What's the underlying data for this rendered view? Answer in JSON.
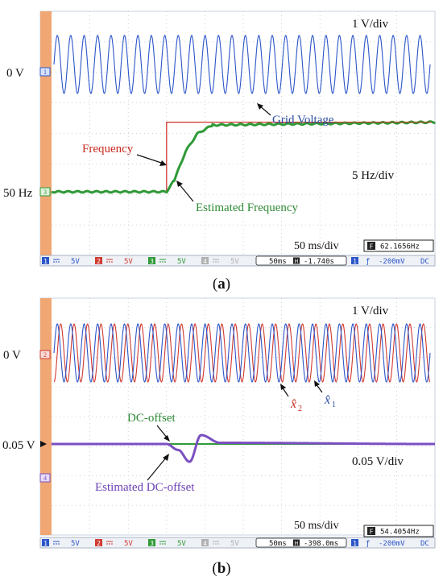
{
  "figure_a": {
    "caption": "(a)",
    "scale_top": "1 V/div",
    "scale_bottom": "5 Hz/div",
    "time_div": "50 ms/div",
    "ch1_ref": "0 V",
    "freq_ref": "50 Hz",
    "annot_frequency": "Frequency",
    "annot_estimated": "Estimated Frequency",
    "annot_grid": "Grid Voltage",
    "freq_readout": "62.1656Hz",
    "statusbar": {
      "ch1": "5V",
      "ch2": "5V",
      "ch3": "5V",
      "ch4": "5V",
      "timebase": "50ms",
      "hpos": "-1.740s",
      "trig": "-200mV",
      "coupling": "DC"
    }
  },
  "figure_b": {
    "caption": "(b)",
    "scale_top": "1 V/div",
    "scale_bottom": "0.05 V/div",
    "time_div": "50 ms/div",
    "ch2_ref": "0 V",
    "dc_ref": "0.05 V",
    "annot_dc": "DC-offset",
    "annot_estimated": "Estimated DC-offset",
    "annot_x2": "x̂",
    "annot_x2_sub": "2",
    "annot_x1": "x̂",
    "annot_x1_sub": "1",
    "freq_readout": "54.4054Hz",
    "statusbar": {
      "ch1": "5V",
      "ch2": "5V",
      "ch3": "5V",
      "ch4": "5V",
      "timebase": "50ms",
      "hpos": "-398.0ms",
      "trig": "-200mV",
      "coupling": "DC"
    }
  },
  "colors": {
    "ch1_blue": "#2b55c8",
    "ch2_red": "#d03a30",
    "ch3_green": "#2f9a37",
    "ch4_purple": "#7a4fc0",
    "grid": "#b8c6d8",
    "left_strip": "#f0a774",
    "annot_blue": "#2b4fa0",
    "annot_red": "#c8291e",
    "annot_green": "#2f8a35",
    "annot_purple": "#6a3fb5"
  },
  "chart_data": [
    {
      "type": "line",
      "series": [
        {
          "name": "Grid Voltage",
          "channel": 1,
          "kind": "sine",
          "cycles": 28,
          "amplitude_div": 1.0
        },
        {
          "name": "Frequency",
          "channel": 2,
          "x_div": [
            0,
            3.0,
            3.0,
            10
          ],
          "y_hz": [
            50,
            50,
            62,
            62
          ]
        },
        {
          "name": "Estimated Frequency",
          "channel": 3,
          "x_div": [
            0,
            3.0,
            3.2,
            3.5,
            3.8,
            4.2,
            10
          ],
          "y_hz": [
            50,
            50,
            52,
            57,
            60,
            61.5,
            62
          ]
        }
      ]
    },
    {
      "type": "line",
      "series": [
        {
          "name": "x̂1",
          "channel": 1,
          "kind": "sine",
          "cycles": 28,
          "amplitude_div": 1.0
        },
        {
          "name": "x̂2",
          "channel": 2,
          "kind": "sine",
          "cycles": 28,
          "amplitude_div": 1.0,
          "phase_deg": -90
        },
        {
          "name": "DC-offset",
          "channel": 3,
          "x_div": [
            0,
            10
          ],
          "y_v": [
            0.05,
            0.05
          ]
        },
        {
          "name": "Estimated DC-offset",
          "channel": 4,
          "kind": "damped",
          "x_div": [
            0,
            3.0,
            3.3,
            3.6,
            3.9,
            4.4,
            10
          ],
          "y_v": [
            0.05,
            0.05,
            0.04,
            0.02,
            0.065,
            0.052,
            0.05
          ]
        }
      ]
    }
  ]
}
